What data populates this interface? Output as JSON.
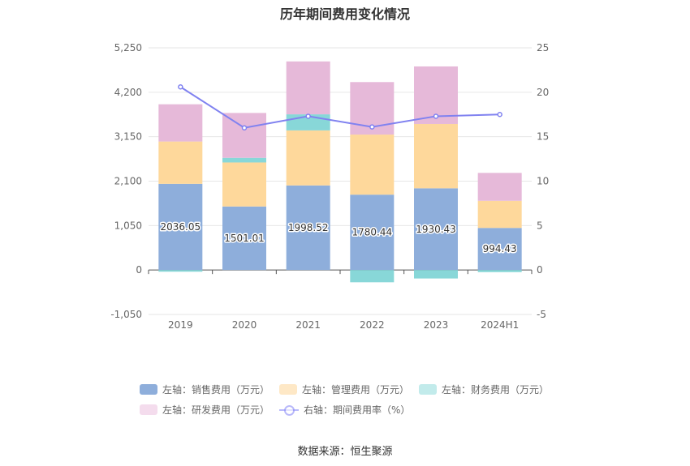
{
  "chart_data": {
    "type": "bar",
    "title": "历年期间费用变化情况",
    "categories": [
      "2019",
      "2020",
      "2021",
      "2022",
      "2023",
      "2024H1"
    ],
    "left_axis": {
      "ticks": [
        "5,250",
        "4,200",
        "3,150",
        "2,100",
        "1,050",
        "0",
        "-1,050"
      ],
      "ylim": [
        -1050,
        5250
      ]
    },
    "right_axis": {
      "ticks": [
        "25",
        "20",
        "15",
        "10",
        "5",
        "0",
        "-5"
      ],
      "ylim": [
        -5,
        25
      ]
    },
    "series": [
      {
        "name": "左轴：销售费用（万元）",
        "color": "#8eaedb",
        "values": [
          2036.05,
          1501.01,
          1998.52,
          1780.44,
          1930.43,
          994.43
        ],
        "labels": [
          "2036.05",
          "1501.01",
          "1998.52",
          "1780.44",
          "1930.43",
          "994.43"
        ]
      },
      {
        "name": "左轴：管理费用（万元）",
        "color": "#fed89b",
        "values": [
          1000,
          1040,
          1300,
          1420,
          1520,
          640
        ]
      },
      {
        "name": "左轴：财务费用（万元）",
        "color": "#88d7d8",
        "values": [
          -40,
          110,
          380,
          -290,
          -200,
          -50
        ]
      },
      {
        "name": "左轴：研发费用（万元）",
        "color": "#e6b9d9",
        "values": [
          880,
          1060,
          1250,
          1240,
          1360,
          660
        ]
      }
    ],
    "line": {
      "name": "右轴：期间费用率（%）",
      "color": "#8082f0",
      "values": [
        20.6,
        16.0,
        17.3,
        16.1,
        17.3,
        17.5
      ]
    }
  },
  "legend": {
    "sales": "左轴：销售费用（万元）",
    "admin": "左轴：管理费用（万元）",
    "finance": "左轴：财务费用（万元）",
    "rd": "左轴：研发费用（万元）",
    "rate": "右轴：期间费用率（%）"
  },
  "source": "数据来源：恒生聚源"
}
